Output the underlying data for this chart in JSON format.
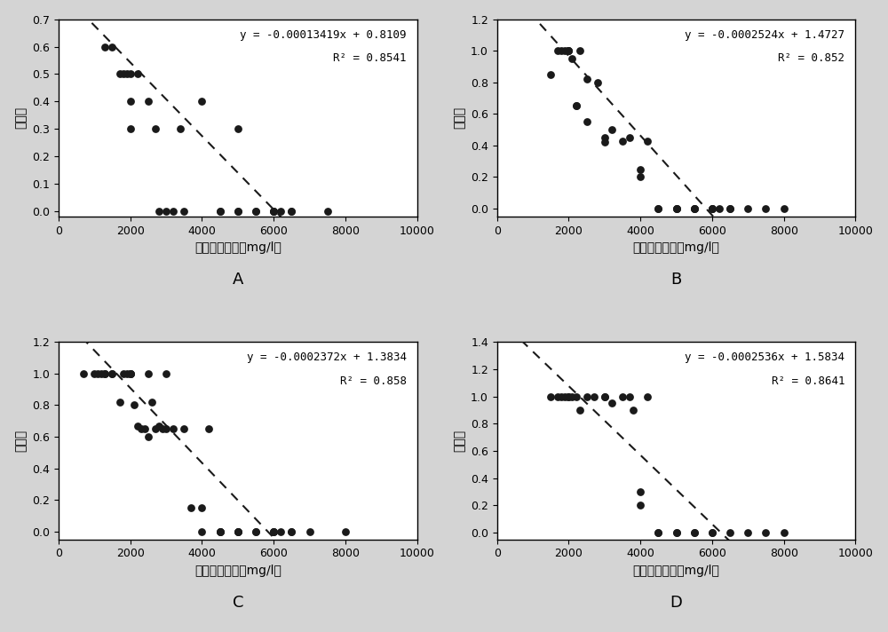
{
  "subplots": [
    {
      "label": "A",
      "ylabel": "站次比",
      "xlabel": "血液乙醇浓度（mg/l）",
      "equation": "y = -0.00013419x + 0.8109",
      "r2": "R² = 0.8541",
      "slope": -0.00013419,
      "intercept": 0.8109,
      "xlim": [
        0,
        10000
      ],
      "ylim": [
        -0.02,
        0.7
      ],
      "yticks": [
        0.0,
        0.1,
        0.2,
        0.3,
        0.4,
        0.5,
        0.6,
        0.7
      ],
      "xticks": [
        0,
        2000,
        4000,
        6000,
        8000,
        10000
      ],
      "scatter_x": [
        1300,
        1500,
        1700,
        1800,
        1900,
        2000,
        2000,
        2000,
        2200,
        2500,
        2700,
        2800,
        3000,
        3200,
        3400,
        3500,
        4000,
        4500,
        4500,
        5000,
        5000,
        5000,
        5500,
        5500,
        6000,
        6000,
        6000,
        6200,
        6500,
        6500,
        7500
      ],
      "scatter_y": [
        0.6,
        0.6,
        0.5,
        0.5,
        0.5,
        0.5,
        0.4,
        0.3,
        0.5,
        0.4,
        0.3,
        0.0,
        0.0,
        0.0,
        0.3,
        0.0,
        0.4,
        0.0,
        0.0,
        0.3,
        0.0,
        0.0,
        0.0,
        0.0,
        0.0,
        0.0,
        0.0,
        0.0,
        0.0,
        0.0,
        0.0
      ]
    },
    {
      "label": "B",
      "ylabel": "滚圈比",
      "xlabel": "血液乙醇浓度（mg/l）",
      "equation": "y = -0.0002524x + 1.4727",
      "r2": "R² = 0.852",
      "slope": -0.0002524,
      "intercept": 1.4727,
      "xlim": [
        0,
        10000
      ],
      "ylim": [
        -0.05,
        1.2
      ],
      "yticks": [
        0.0,
        0.2,
        0.4,
        0.6,
        0.8,
        1.0,
        1.2
      ],
      "xticks": [
        0,
        2000,
        4000,
        6000,
        8000,
        10000
      ],
      "scatter_x": [
        1500,
        1700,
        1800,
        1900,
        2000,
        2000,
        2000,
        2100,
        2200,
        2200,
        2300,
        2500,
        2500,
        2800,
        3000,
        3000,
        3200,
        3500,
        3700,
        4000,
        4000,
        4200,
        4500,
        4500,
        5000,
        5000,
        5000,
        5500,
        5500,
        5500,
        6000,
        6000,
        6000,
        6200,
        6500,
        6500,
        7000,
        7500,
        8000
      ],
      "scatter_y": [
        0.85,
        1.0,
        1.0,
        1.0,
        1.0,
        1.0,
        1.0,
        0.95,
        0.65,
        0.65,
        1.0,
        0.82,
        0.55,
        0.8,
        0.45,
        0.42,
        0.5,
        0.43,
        0.45,
        0.25,
        0.2,
        0.43,
        0.0,
        0.0,
        0.0,
        0.0,
        0.0,
        0.0,
        0.0,
        0.0,
        0.0,
        0.0,
        0.0,
        0.0,
        0.0,
        0.0,
        0.0,
        0.0,
        0.0
      ]
    },
    {
      "label": "C",
      "ylabel": "游距比",
      "xlabel": "血液乙醇浓度（mg/l）",
      "equation": "y = -0.0002372x + 1.3834",
      "r2": "R² = 0.858",
      "slope": -0.0002372,
      "intercept": 1.3834,
      "xlim": [
        0,
        10000
      ],
      "ylim": [
        -0.05,
        1.2
      ],
      "yticks": [
        0.0,
        0.2,
        0.4,
        0.6,
        0.8,
        1.0,
        1.2
      ],
      "xticks": [
        0,
        2000,
        4000,
        6000,
        8000,
        10000
      ],
      "scatter_x": [
        700,
        1000,
        1100,
        1200,
        1300,
        1300,
        1500,
        1500,
        1700,
        1800,
        1900,
        2000,
        2000,
        2000,
        2100,
        2200,
        2300,
        2400,
        2500,
        2500,
        2600,
        2700,
        2800,
        2900,
        3000,
        3000,
        3200,
        3500,
        3700,
        4000,
        4000,
        4200,
        4500,
        4500,
        4500,
        5000,
        5000,
        5000,
        5500,
        5500,
        6000,
        6000,
        6000,
        6200,
        6500,
        6500,
        7000,
        8000
      ],
      "scatter_y": [
        1.0,
        1.0,
        1.0,
        1.0,
        1.0,
        1.0,
        1.0,
        1.0,
        0.82,
        1.0,
        1.0,
        1.0,
        1.0,
        1.0,
        0.8,
        0.67,
        0.65,
        0.65,
        0.6,
        1.0,
        0.82,
        0.65,
        0.67,
        0.65,
        0.65,
        1.0,
        0.65,
        0.65,
        0.15,
        0.15,
        0.0,
        0.65,
        0.0,
        0.0,
        0.0,
        0.0,
        0.0,
        0.0,
        0.0,
        0.0,
        0.0,
        0.0,
        0.0,
        0.0,
        0.0,
        0.0,
        0.0,
        0.0
      ]
    },
    {
      "label": "D",
      "ylabel": "翻正比",
      "xlabel": "血液乙醇浓度（mg/l）",
      "equation": "y = -0.0002536x + 1.5834",
      "r2": "R² = 0.8641",
      "slope": -0.0002536,
      "intercept": 1.5834,
      "xlim": [
        0,
        10000
      ],
      "ylim": [
        -0.05,
        1.4
      ],
      "yticks": [
        0.0,
        0.2,
        0.4,
        0.6,
        0.8,
        1.0,
        1.2,
        1.4
      ],
      "xticks": [
        0,
        2000,
        4000,
        6000,
        8000,
        10000
      ],
      "scatter_x": [
        1500,
        1700,
        1800,
        1900,
        2000,
        2000,
        2100,
        2200,
        2300,
        2500,
        2700,
        3000,
        3000,
        3200,
        3500,
        3700,
        3800,
        4000,
        4000,
        4200,
        4500,
        4500,
        5000,
        5000,
        5500,
        5500,
        6000,
        6000,
        6500,
        7000,
        7500,
        8000
      ],
      "scatter_y": [
        1.0,
        1.0,
        1.0,
        1.0,
        1.0,
        1.0,
        1.0,
        1.0,
        0.9,
        1.0,
        1.0,
        1.0,
        1.0,
        0.95,
        1.0,
        1.0,
        0.9,
        0.2,
        0.3,
        1.0,
        0.0,
        0.0,
        0.0,
        0.0,
        0.0,
        0.0,
        0.0,
        0.0,
        0.0,
        0.0,
        0.0,
        0.0
      ]
    }
  ],
  "figure_bg": "#d4d4d4",
  "axes_bg": "#ffffff",
  "dot_color": "#1a1a1a",
  "line_color": "#1a1a1a",
  "dot_size": 40,
  "equation_fontsize": 9,
  "label_fontsize": 13,
  "axis_label_fontsize": 10,
  "tick_fontsize": 9
}
